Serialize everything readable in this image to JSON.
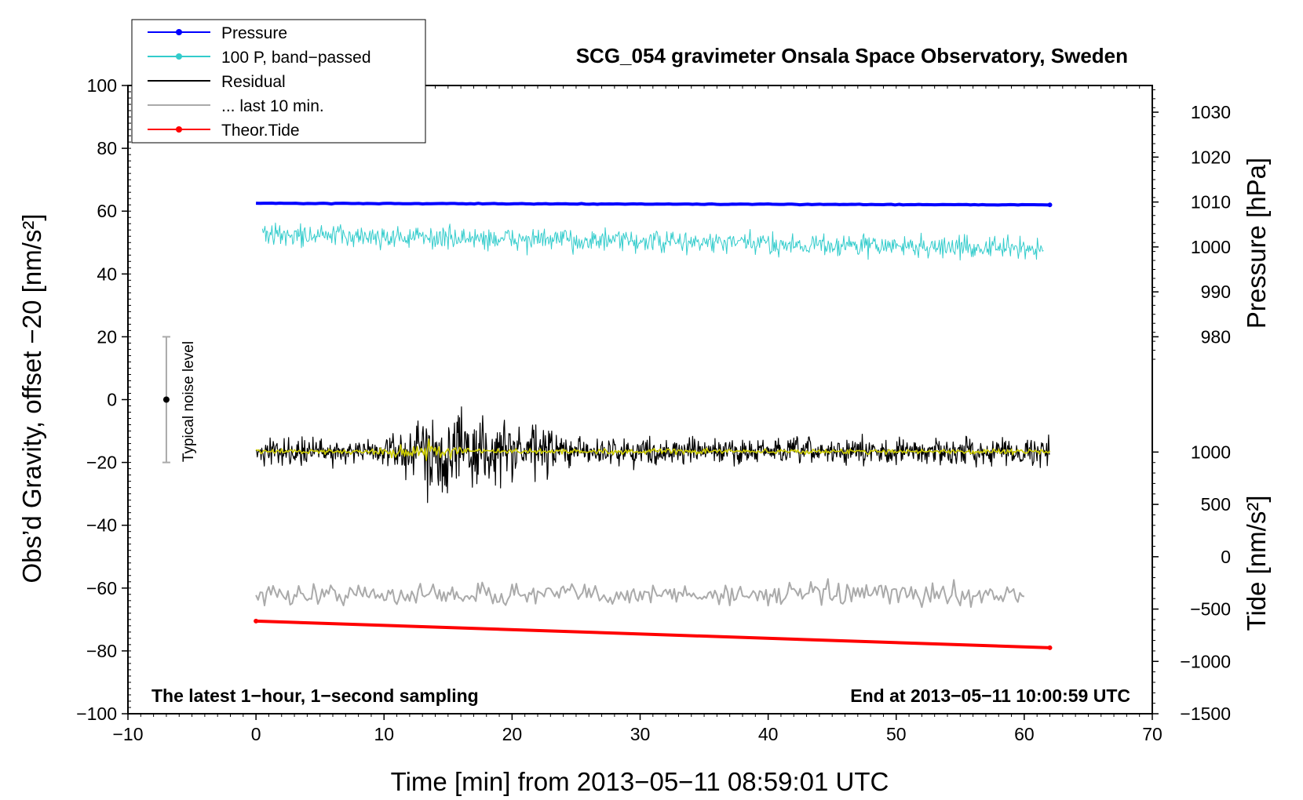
{
  "chart_data": {
    "type": "line",
    "title": "SCG_054 gravimeter Onsala Space Observatory, Sweden",
    "xlabel": "Time [min] from 2013−05−11 08:59:01 UTC",
    "ylabel_left": "Obs’d Gravity, offset −20 [nm/s²]",
    "ylabel_pressure": "Pressure [hPa]",
    "ylabel_tide": "Tide [nm/s²]",
    "xlim": [
      -10,
      70
    ],
    "ylim": [
      -100,
      100
    ],
    "x_ticks": [
      {
        "value": -10,
        "label": "−10"
      },
      {
        "value": 0,
        "label": "0"
      },
      {
        "value": 10,
        "label": "10"
      },
      {
        "value": 20,
        "label": "20"
      },
      {
        "value": 30,
        "label": "30"
      },
      {
        "value": 40,
        "label": "40"
      },
      {
        "value": 50,
        "label": "50"
      },
      {
        "value": 60,
        "label": "60"
      },
      {
        "value": 70,
        "label": "70"
      }
    ],
    "y_ticks": [
      {
        "value": 100,
        "label": "100"
      },
      {
        "value": 80,
        "label": "80"
      },
      {
        "value": 60,
        "label": "60"
      },
      {
        "value": 40,
        "label": "40"
      },
      {
        "value": 20,
        "label": "20"
      },
      {
        "value": 0,
        "label": "0"
      },
      {
        "value": -20,
        "label": "−20"
      },
      {
        "value": -40,
        "label": "−40"
      },
      {
        "value": -60,
        "label": "−60"
      },
      {
        "value": -80,
        "label": "−80"
      },
      {
        "value": -100,
        "label": "−100"
      }
    ],
    "pressure_axis": {
      "map": [
        [
          980,
          20
        ],
        [
          1030,
          91.5
        ]
      ],
      "ticks": [
        {
          "value": 1030,
          "label": "1030"
        },
        {
          "value": 1020,
          "label": "1020"
        },
        {
          "value": 1010,
          "label": "1010"
        },
        {
          "value": 1000,
          "label": "1000"
        },
        {
          "value": 990,
          "label": "990"
        },
        {
          "value": 980,
          "label": "980"
        }
      ]
    },
    "tide_axis": {
      "map": [
        [
          -1500,
          -100
        ],
        [
          1000,
          -16.7
        ]
      ],
      "ticks": [
        {
          "value": 1000,
          "label": "1000"
        },
        {
          "value": 500,
          "label": "500"
        },
        {
          "value": 0,
          "label": "0"
        },
        {
          "value": -500,
          "label": "−500"
        },
        {
          "value": -1000,
          "label": "−1000"
        },
        {
          "value": -1500,
          "label": "−1500"
        }
      ]
    },
    "series": [
      {
        "name": "Pressure",
        "color": "#0000ff",
        "x_range": [
          0,
          62
        ],
        "y_start": 62.5,
        "y_end": 62.0,
        "noise_amplitude": 0.1
      },
      {
        "name": "100 P, band−passed",
        "color": "#33cccc",
        "x_range": [
          0.5,
          61.5
        ],
        "y_center_start": 52.5,
        "y_center_end": 48.0,
        "noise_amplitude": 3.5
      },
      {
        "name": "Residual",
        "color": "#000000",
        "x_range": [
          0,
          62
        ],
        "y_center": -16.5,
        "noise_amplitude": 4,
        "burst": {
          "x_from": 10,
          "x_to": 26,
          "peak_x": 14.5,
          "peak_amplitude": 14
        }
      },
      {
        "name": "... last 10 min.",
        "color": "#aaaaaa",
        "x_range": [
          0,
          60
        ],
        "y_center": -62,
        "noise_amplitude": 3.5
      },
      {
        "name": "Theor.Tide",
        "color": "#ff0000",
        "x_range": [
          0,
          62
        ],
        "y_start": -70.5,
        "y_end": -79.0
      },
      {
        "name": "filtered residual",
        "color": "#cccc00",
        "x_range": [
          0,
          62
        ],
        "y_center": -16.5,
        "noise_amplitude": 0.8,
        "burst": {
          "x_from": 9,
          "x_to": 17,
          "peak_x": 14.0,
          "peak_amplitude": 3.5
        }
      }
    ],
    "legend": [
      {
        "label": "Pressure",
        "color": "#0000ff",
        "marker": true
      },
      {
        "label": "100 P, band−passed",
        "color": "#33cccc",
        "marker": true
      },
      {
        "label": "Residual",
        "color": "#000000",
        "marker": false
      },
      {
        "label": "... last 10 min.",
        "color": "#aaaaaa",
        "marker": false
      },
      {
        "label": "Theor.Tide",
        "color": "#ff0000",
        "marker": true
      }
    ],
    "legend_position": "top-left",
    "noise_bar": {
      "x": -7,
      "y_center": 0,
      "y_low": -20,
      "y_high": 20,
      "label": "Typical noise level"
    },
    "annotations": {
      "bottom_left": "The latest 1−hour, 1−second sampling",
      "bottom_right": "End at 2013−05−11 10:00:59 UTC"
    }
  }
}
